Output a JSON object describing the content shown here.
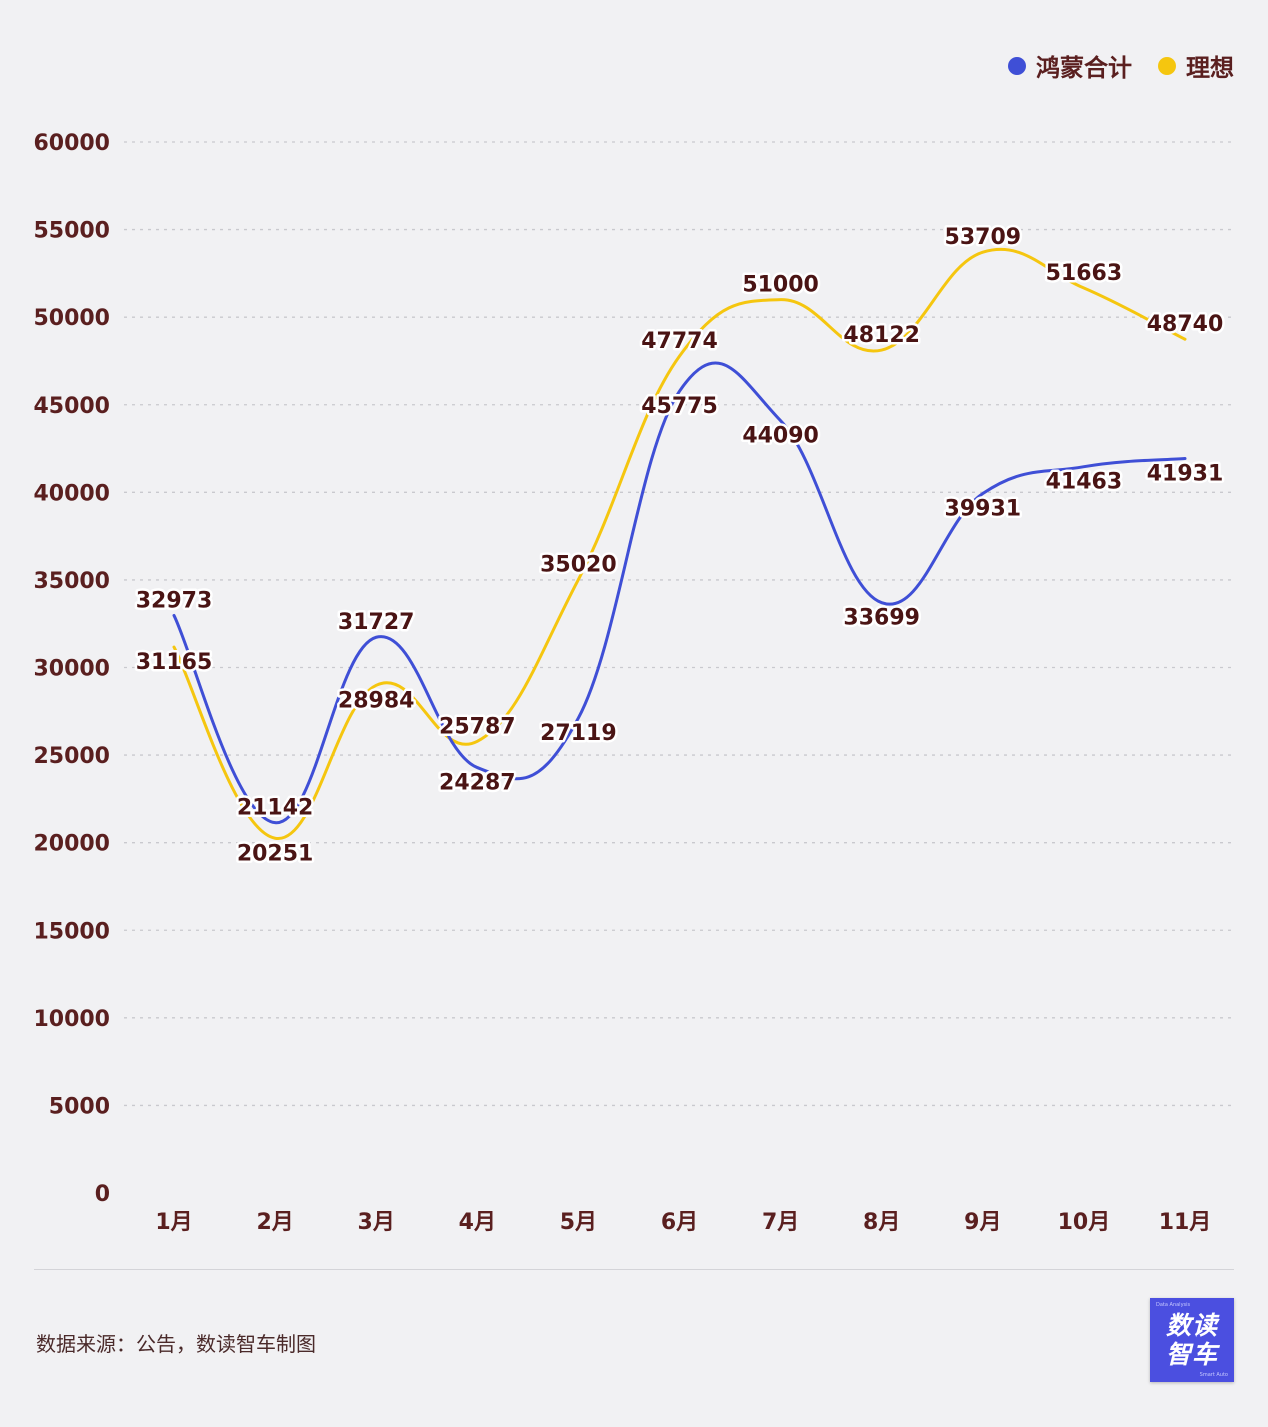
{
  "legend": {
    "items": [
      {
        "label": "鸿蒙合计",
        "color": "#3f4fd6"
      },
      {
        "label": "理想",
        "color": "#f5c60f"
      }
    ]
  },
  "footer": {
    "source": "数据来源：公告，数读智车制图",
    "logo_line1": "数读",
    "logo_line2": "智车",
    "logo_small_top": "Data Analysis",
    "logo_small_bottom": "Smart Auto"
  },
  "chart_data": {
    "type": "line",
    "categories": [
      "1月",
      "2月",
      "3月",
      "4月",
      "5月",
      "6月",
      "7月",
      "8月",
      "9月",
      "10月",
      "11月"
    ],
    "ylim": [
      0,
      60000
    ],
    "yticks": [
      0,
      5000,
      10000,
      15000,
      20000,
      25000,
      30000,
      35000,
      40000,
      45000,
      50000,
      55000,
      60000
    ],
    "grid": "horizontal dotted",
    "legend_position": "top-right",
    "smooth": true,
    "data_labels": true,
    "series": [
      {
        "name": "鸿蒙合计",
        "color": "#3f4fd6",
        "values": [
          32973,
          21142,
          31727,
          24287,
          27119,
          45775,
          44090,
          33699,
          39931,
          41463,
          41931
        ]
      },
      {
        "name": "理想",
        "color": "#f5c60f",
        "values": [
          31165,
          20251,
          28984,
          25787,
          35020,
          47774,
          51000,
          48122,
          53709,
          51663,
          48740
        ]
      }
    ]
  }
}
